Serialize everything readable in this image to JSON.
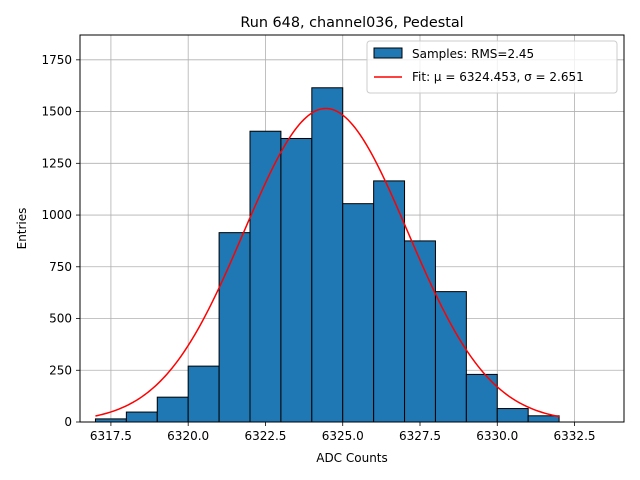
{
  "chart_data": {
    "type": "bar",
    "title": "Run 648, channel036, Pedestal",
    "xlabel": "ADC Counts",
    "ylabel": "Entries",
    "xlim": [
      6316.5,
      6334.1
    ],
    "ylim": [
      0,
      1870
    ],
    "xticks": [
      6317.5,
      6320.0,
      6322.5,
      6325.0,
      6327.5,
      6330.0,
      6332.5
    ],
    "yticks": [
      0,
      250,
      500,
      750,
      1000,
      1250,
      1500,
      1750
    ],
    "grid": true,
    "legend_position": "top-right",
    "histogram": {
      "name": "Samples: RMS=2.45",
      "color": "#1f77b4",
      "edge_color": "#000000",
      "bin_edges": [
        6317,
        6318,
        6319,
        6320,
        6321,
        6322,
        6323,
        6324,
        6325,
        6326,
        6327,
        6328,
        6329,
        6330,
        6331,
        6332
      ],
      "counts": [
        15,
        48,
        120,
        270,
        915,
        1405,
        1370,
        1615,
        1055,
        1165,
        875,
        630,
        230,
        65,
        30
      ]
    },
    "fit": {
      "name": "Fit: μ = 6324.453, σ = 2.651",
      "color": "#ff0000",
      "mu": 6324.453,
      "sigma": 2.651,
      "amplitude": 1515,
      "x_range": [
        6317,
        6332
      ]
    }
  }
}
